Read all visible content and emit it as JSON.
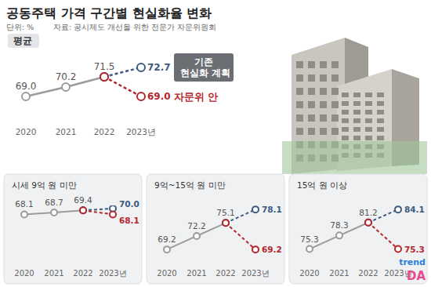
{
  "header": {
    "title": "공동주택 가격 구간별 현실화율 변화",
    "unit": "단위: %",
    "source": "자료: 공시제도 개선을 위한 전문가 자문위원회"
  },
  "watermark": [
    "trend",
    "DA"
  ],
  "chart_data": [
    {
      "type": "line",
      "title": "평균",
      "categories": [
        "2020",
        "2021",
        "2022",
        "2023년"
      ],
      "ylim": [
        66.5,
        73.5
      ],
      "tick_labels": "x",
      "data_labels": true,
      "legend": "right",
      "series": [
        {
          "color": "#9b9b9b",
          "line_style": "solid",
          "marker": "circle",
          "values": [
            69.0,
            70.2,
            71.5,
            null
          ],
          "value_labels": [
            "69.0",
            "70.2",
            "71.5",
            null
          ]
        },
        {
          "name": "기존 현실화 계획",
          "color": "#3d5a80",
          "line_style": "dashed",
          "marker": "circle",
          "values": [
            null,
            null,
            71.5,
            72.7
          ],
          "value_labels": [
            null,
            null,
            null,
            "72.7"
          ]
        },
        {
          "name": "자문위 안",
          "color": "#b5262e",
          "line_style": "dashed",
          "marker": "circle",
          "values": [
            null,
            null,
            71.5,
            69.0
          ],
          "value_labels": [
            null,
            null,
            null,
            "69.0"
          ]
        }
      ]
    },
    {
      "type": "line",
      "title": "시세 9억 원 미만",
      "categories": [
        "2020",
        "2021",
        "2022",
        "2023년"
      ],
      "ylim": [
        55,
        71
      ],
      "tick_labels": "x",
      "data_labels": true,
      "series": [
        {
          "color": "#9b9b9b",
          "line_style": "solid",
          "marker": "circle",
          "values": [
            68.1,
            68.7,
            69.4,
            null
          ],
          "value_labels": [
            "68.1",
            "68.7",
            "69.4",
            null
          ]
        },
        {
          "color": "#3d5a80",
          "line_style": "dashed",
          "marker": "circle",
          "values": [
            null,
            null,
            69.4,
            70.0
          ],
          "value_labels": [
            null,
            null,
            null,
            "70.0"
          ]
        },
        {
          "color": "#b5262e",
          "line_style": "dashed",
          "marker": "circle",
          "values": [
            null,
            null,
            69.4,
            68.1
          ],
          "value_labels": [
            null,
            null,
            null,
            "68.1"
          ]
        }
      ]
    },
    {
      "type": "line",
      "title": "9억~15억 원 미만",
      "categories": [
        "2020",
        "2021",
        "2022",
        "2023년"
      ],
      "ylim": [
        68,
        79
      ],
      "tick_labels": "x",
      "data_labels": true,
      "series": [
        {
          "color": "#9b9b9b",
          "line_style": "solid",
          "marker": "circle",
          "values": [
            69.2,
            72.2,
            75.1,
            null
          ],
          "value_labels": [
            "69.2",
            "72.2",
            "75.1",
            null
          ]
        },
        {
          "color": "#3d5a80",
          "line_style": "dashed",
          "marker": "circle",
          "values": [
            null,
            null,
            75.1,
            78.1
          ],
          "value_labels": [
            null,
            null,
            null,
            "78.1"
          ]
        },
        {
          "color": "#b5262e",
          "line_style": "dashed",
          "marker": "circle",
          "values": [
            null,
            null,
            75.1,
            69.2
          ],
          "value_labels": [
            null,
            null,
            null,
            "69.2"
          ]
        }
      ]
    },
    {
      "type": "line",
      "title": "15억 원 이상",
      "categories": [
        "2020",
        "2021",
        "2022",
        "2023년"
      ],
      "ylim": [
        74,
        85
      ],
      "tick_labels": "x",
      "data_labels": true,
      "series": [
        {
          "color": "#9b9b9b",
          "line_style": "solid",
          "marker": "circle",
          "values": [
            75.3,
            78.3,
            81.2,
            null
          ],
          "value_labels": [
            "75.3",
            "78.3",
            "81.2",
            null
          ]
        },
        {
          "color": "#3d5a80",
          "line_style": "dashed",
          "marker": "circle",
          "values": [
            null,
            null,
            81.2,
            84.1
          ],
          "value_labels": [
            null,
            null,
            null,
            "84.1"
          ]
        },
        {
          "color": "#b5262e",
          "line_style": "dashed",
          "marker": "circle",
          "values": [
            null,
            null,
            81.2,
            75.3
          ],
          "value_labels": [
            null,
            null,
            null,
            "75.3"
          ]
        }
      ]
    }
  ]
}
